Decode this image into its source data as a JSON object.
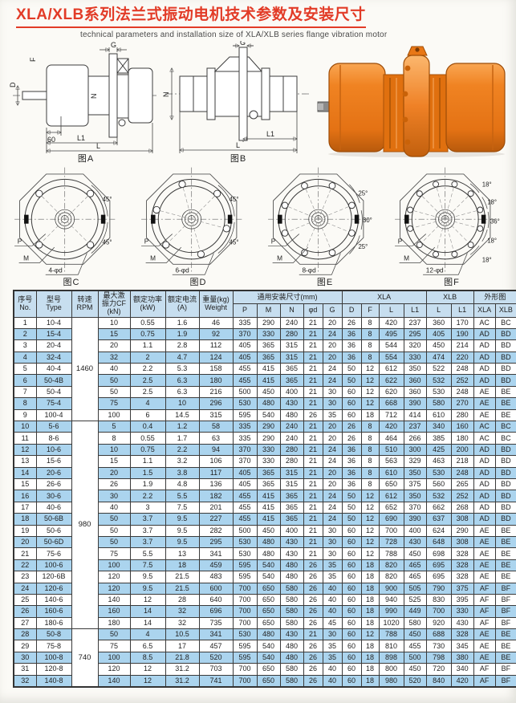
{
  "page": {
    "title": "XLA/XLB系列法兰式振动电机技术参数及安装尺寸",
    "subtitle": "technical parameters and installation size of XLA/XLB series flange vibration motor"
  },
  "diagrams": {
    "figA": {
      "label": "图A",
      "g": "G",
      "f": "F",
      "d": "D",
      "n": "N",
      "d60": "60",
      "l1": "L1",
      "l": "L"
    },
    "figB": {
      "label": "图B",
      "g": "G",
      "n": "N",
      "l1": "L1",
      "l": "L"
    },
    "figC": {
      "label": "图C",
      "holes": "4-φd",
      "p": "P",
      "m": "M",
      "angles": [
        "45°",
        "45°"
      ]
    },
    "figD": {
      "label": "图D",
      "holes": "6-φd",
      "p": "P",
      "m": "M",
      "angles": [
        "45°",
        "45°"
      ]
    },
    "figE": {
      "label": "图E",
      "holes": "8-φd",
      "p": "P",
      "m": "M",
      "angles": [
        "25°",
        "30°",
        "25°"
      ]
    },
    "figF": {
      "label": "图F",
      "holes": "12-φd",
      "p": "P",
      "m": "M",
      "angles": [
        "18°",
        "18°",
        "36°",
        "18°",
        "18°"
      ]
    },
    "photo": {
      "name": "XLA/XLB flange vibration motor",
      "color": "#ed7c1d"
    }
  },
  "table": {
    "headers": {
      "no": "序号\nNo.",
      "type": "型号\nType",
      "rpm": "转速\nRPM",
      "cf": "最大激\n振力CF\n(kN)",
      "power": "额定功率\n(kW)",
      "current": "额定电流\n(A)",
      "weight": "重量(kg)\nWeight",
      "common": "通用安装尺寸(mm)",
      "xla": "XLA",
      "xlb": "XLB",
      "shape": "外形图",
      "sub": [
        "P",
        "M",
        "N",
        "φd",
        "G",
        "D",
        "F",
        "L",
        "L1",
        "L",
        "L1",
        "XLA",
        "XLB"
      ]
    },
    "rpm_groups": [
      {
        "rpm": "1460",
        "start": 1,
        "span": 9
      },
      {
        "rpm": "980",
        "start": 10,
        "span": 18
      },
      {
        "rpm": "740",
        "start": 28,
        "span": 5
      }
    ],
    "rows": [
      [
        "1",
        "10-4",
        "10",
        "0.55",
        "1.6",
        "46",
        "335",
        "290",
        "240",
        "21",
        "20",
        "26",
        "8",
        "420",
        "237",
        "360",
        "170",
        "AC",
        "BC"
      ],
      [
        "2",
        "15-4",
        "15",
        "0.75",
        "1.9",
        "92",
        "370",
        "330",
        "280",
        "21",
        "24",
        "36",
        "8",
        "495",
        "295",
        "405",
        "190",
        "AD",
        "BD"
      ],
      [
        "3",
        "20-4",
        "20",
        "1.1",
        "2.8",
        "112",
        "405",
        "365",
        "315",
        "21",
        "20",
        "36",
        "8",
        "544",
        "320",
        "450",
        "214",
        "AD",
        "BD"
      ],
      [
        "4",
        "32-4",
        "32",
        "2",
        "4.7",
        "124",
        "405",
        "365",
        "315",
        "21",
        "20",
        "36",
        "8",
        "554",
        "330",
        "474",
        "220",
        "AD",
        "BD"
      ],
      [
        "5",
        "40-4",
        "40",
        "2.2",
        "5.3",
        "158",
        "455",
        "415",
        "365",
        "21",
        "24",
        "50",
        "12",
        "612",
        "350",
        "522",
        "248",
        "AD",
        "BD"
      ],
      [
        "6",
        "50-4B",
        "50",
        "2.5",
        "6.3",
        "180",
        "455",
        "415",
        "365",
        "21",
        "24",
        "50",
        "12",
        "622",
        "360",
        "532",
        "252",
        "AD",
        "BD"
      ],
      [
        "7",
        "50-4",
        "50",
        "2.5",
        "6.3",
        "216",
        "500",
        "450",
        "400",
        "21",
        "30",
        "60",
        "12",
        "620",
        "360",
        "530",
        "248",
        "AE",
        "BE"
      ],
      [
        "8",
        "75-4",
        "75",
        "4",
        "10",
        "296",
        "530",
        "480",
        "430",
        "21",
        "30",
        "60",
        "12",
        "668",
        "390",
        "580",
        "270",
        "AE",
        "BE"
      ],
      [
        "9",
        "100-4",
        "100",
        "6",
        "14.5",
        "315",
        "595",
        "540",
        "480",
        "26",
        "35",
        "60",
        "18",
        "712",
        "414",
        "610",
        "280",
        "AE",
        "BE"
      ],
      [
        "10",
        "5-6",
        "5",
        "0.4",
        "1.2",
        "58",
        "335",
        "290",
        "240",
        "21",
        "20",
        "26",
        "8",
        "420",
        "237",
        "340",
        "160",
        "AC",
        "BC"
      ],
      [
        "11",
        "8-6",
        "8",
        "0.55",
        "1.7",
        "63",
        "335",
        "290",
        "240",
        "21",
        "20",
        "26",
        "8",
        "464",
        "266",
        "385",
        "180",
        "AC",
        "BC"
      ],
      [
        "12",
        "10-6",
        "10",
        "0.75",
        "2.2",
        "94",
        "370",
        "330",
        "280",
        "21",
        "24",
        "36",
        "8",
        "510",
        "300",
        "425",
        "200",
        "AD",
        "BD"
      ],
      [
        "13",
        "15-6",
        "15",
        "1.1",
        "3.2",
        "106",
        "370",
        "330",
        "280",
        "21",
        "24",
        "36",
        "8",
        "563",
        "329",
        "463",
        "218",
        "AD",
        "BD"
      ],
      [
        "14",
        "20-6",
        "20",
        "1.5",
        "3.8",
        "117",
        "405",
        "365",
        "315",
        "21",
        "20",
        "36",
        "8",
        "610",
        "350",
        "530",
        "248",
        "AD",
        "BD"
      ],
      [
        "15",
        "26-6",
        "26",
        "1.9",
        "4.8",
        "136",
        "405",
        "365",
        "315",
        "21",
        "20",
        "36",
        "8",
        "650",
        "375",
        "560",
        "265",
        "AD",
        "BD"
      ],
      [
        "16",
        "30-6",
        "30",
        "2.2",
        "5.5",
        "182",
        "455",
        "415",
        "365",
        "21",
        "24",
        "50",
        "12",
        "612",
        "350",
        "532",
        "252",
        "AD",
        "BD"
      ],
      [
        "17",
        "40-6",
        "40",
        "3",
        "7.5",
        "201",
        "455",
        "415",
        "365",
        "21",
        "24",
        "50",
        "12",
        "652",
        "370",
        "662",
        "268",
        "AD",
        "BD"
      ],
      [
        "18",
        "50-6B",
        "50",
        "3.7",
        "9.5",
        "227",
        "455",
        "415",
        "365",
        "21",
        "24",
        "50",
        "12",
        "690",
        "390",
        "637",
        "308",
        "AD",
        "BD"
      ],
      [
        "19",
        "50-6",
        "50",
        "3.7",
        "9.5",
        "282",
        "500",
        "450",
        "400",
        "21",
        "30",
        "60",
        "12",
        "700",
        "400",
        "624",
        "290",
        "AE",
        "BE"
      ],
      [
        "20",
        "50-6D",
        "50",
        "3.7",
        "9.5",
        "295",
        "530",
        "480",
        "430",
        "21",
        "30",
        "60",
        "12",
        "728",
        "430",
        "648",
        "308",
        "AE",
        "BE"
      ],
      [
        "21",
        "75-6",
        "75",
        "5.5",
        "13",
        "341",
        "530",
        "480",
        "430",
        "21",
        "30",
        "60",
        "12",
        "788",
        "450",
        "698",
        "328",
        "AE",
        "BE"
      ],
      [
        "22",
        "100-6",
        "100",
        "7.5",
        "18",
        "459",
        "595",
        "540",
        "480",
        "26",
        "35",
        "60",
        "18",
        "820",
        "465",
        "695",
        "328",
        "AE",
        "BE"
      ],
      [
        "23",
        "120-6B",
        "120",
        "9.5",
        "21.5",
        "483",
        "595",
        "540",
        "480",
        "26",
        "35",
        "60",
        "18",
        "820",
        "465",
        "695",
        "328",
        "AE",
        "BE"
      ],
      [
        "24",
        "120-6",
        "120",
        "9.5",
        "21.5",
        "600",
        "700",
        "650",
        "580",
        "26",
        "40",
        "60",
        "18",
        "900",
        "505",
        "790",
        "375",
        "AF",
        "BF"
      ],
      [
        "25",
        "140-6",
        "140",
        "12",
        "28",
        "640",
        "700",
        "650",
        "580",
        "26",
        "40",
        "60",
        "18",
        "940",
        "525",
        "830",
        "395",
        "AF",
        "BF"
      ],
      [
        "26",
        "160-6",
        "160",
        "14",
        "32",
        "696",
        "700",
        "650",
        "580",
        "26",
        "40",
        "60",
        "18",
        "990",
        "449",
        "700",
        "330",
        "AF",
        "BF"
      ],
      [
        "27",
        "180-6",
        "180",
        "14",
        "32",
        "735",
        "700",
        "650",
        "580",
        "26",
        "45",
        "60",
        "18",
        "1020",
        "580",
        "920",
        "430",
        "AF",
        "BF"
      ],
      [
        "28",
        "50-8",
        "50",
        "4",
        "10.5",
        "341",
        "530",
        "480",
        "430",
        "21",
        "30",
        "60",
        "12",
        "788",
        "450",
        "688",
        "328",
        "AE",
        "BE"
      ],
      [
        "29",
        "75-8",
        "75",
        "6.5",
        "17",
        "457",
        "595",
        "540",
        "480",
        "26",
        "35",
        "60",
        "18",
        "810",
        "455",
        "730",
        "345",
        "AE",
        "BE"
      ],
      [
        "30",
        "100-8",
        "100",
        "8.5",
        "21.8",
        "520",
        "595",
        "540",
        "480",
        "26",
        "35",
        "60",
        "18",
        "898",
        "500",
        "798",
        "380",
        "AE",
        "BE"
      ],
      [
        "31",
        "120-8",
        "120",
        "12",
        "31.2",
        "703",
        "700",
        "650",
        "580",
        "26",
        "40",
        "60",
        "18",
        "800",
        "450",
        "720",
        "340",
        "AF",
        "BF"
      ],
      [
        "32",
        "140-8",
        "140",
        "12",
        "31.2",
        "741",
        "700",
        "650",
        "580",
        "26",
        "40",
        "60",
        "18",
        "980",
        "520",
        "840",
        "420",
        "AF",
        "BF"
      ]
    ]
  }
}
